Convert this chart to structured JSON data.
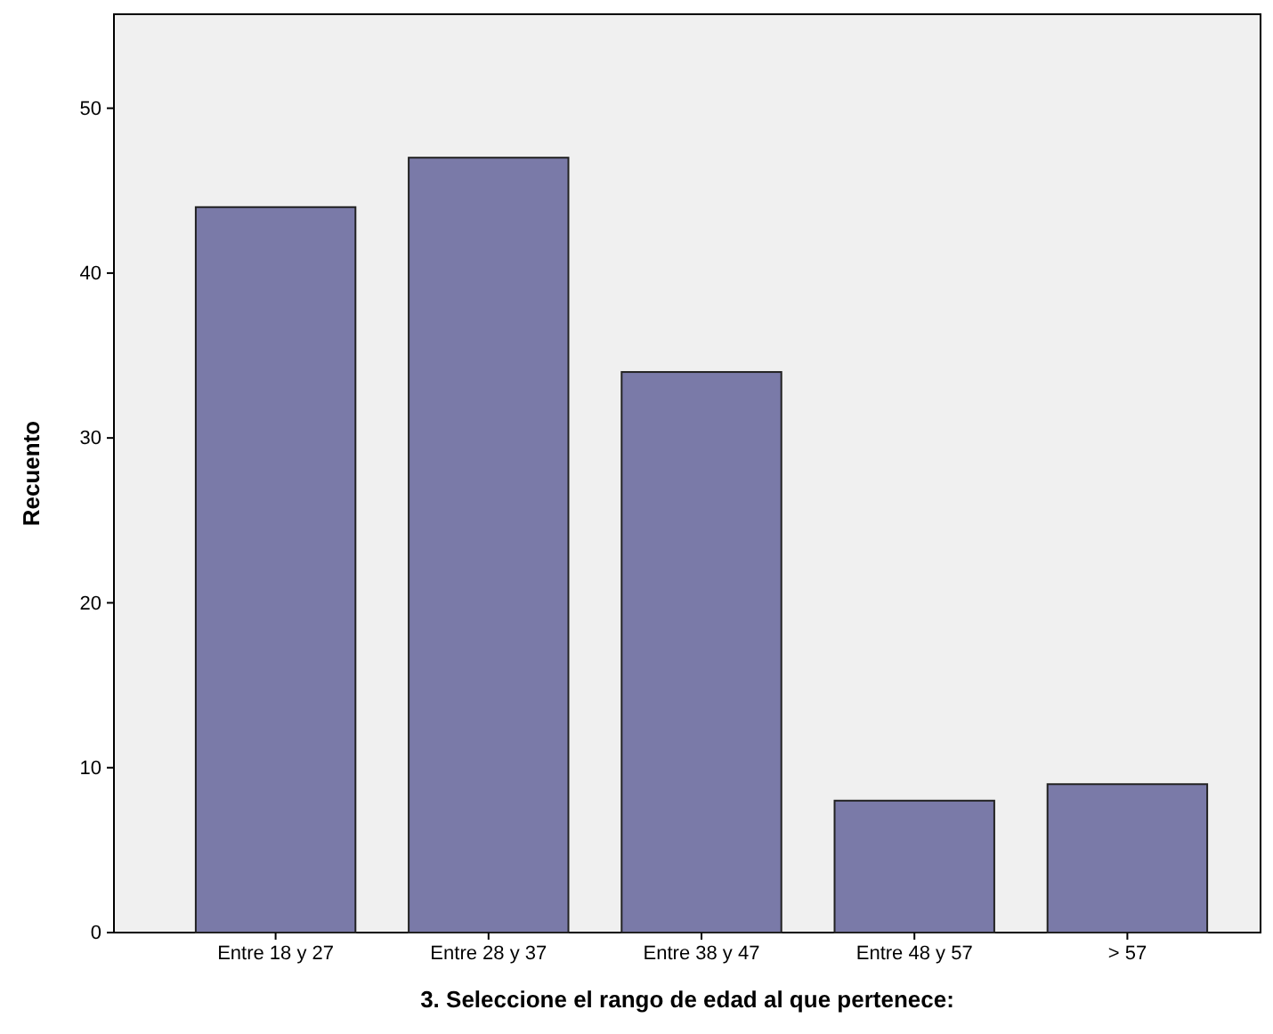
{
  "chart_data": {
    "type": "bar",
    "xlabel": "3. Seleccione el rango de edad al que pertenece:",
    "ylabel": "Recuento",
    "categories": [
      "Entre 18 y 27",
      "Entre 28 y 37",
      "Entre 38 y 47",
      "Entre 48 y 57",
      "> 57"
    ],
    "values": [
      44,
      47,
      34,
      8,
      9
    ],
    "color": "#7a7aa8",
    "ylim": [
      0,
      55.7
    ],
    "yticks": [
      0,
      10,
      20,
      30,
      40,
      50
    ],
    "grid": false
  }
}
